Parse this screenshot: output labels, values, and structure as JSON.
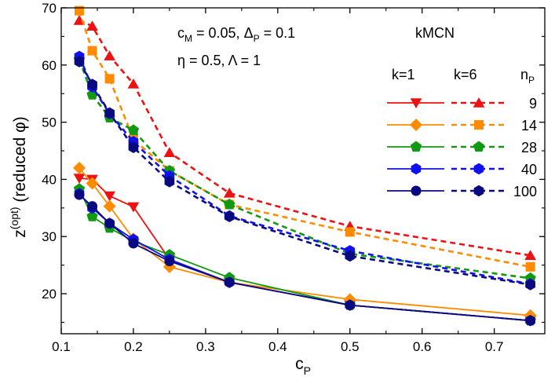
{
  "chart_data": {
    "type": "line",
    "xlabel": "c",
    "xlabel_sub": "P",
    "ylabel_main": "z",
    "ylabel_sup": "(opt)",
    "ylabel_tail": " (reduced φ)",
    "xlim": [
      0.1,
      0.77
    ],
    "ylim": [
      13,
      70
    ],
    "xticks": [
      0.1,
      0.2,
      0.3,
      0.4,
      0.5,
      0.6,
      0.7
    ],
    "xtick_labels": [
      "0.1",
      "0.2",
      "0.3",
      "0.4",
      "0.5",
      "0.6",
      "0.7"
    ],
    "yticks": [
      20,
      30,
      40,
      50,
      60,
      70
    ],
    "ytick_labels": [
      "20",
      "30",
      "40",
      "50",
      "60",
      "70"
    ],
    "x": [
      0.125,
      0.143,
      0.167,
      0.2,
      0.25,
      0.333,
      0.5,
      0.75
    ],
    "annotations": {
      "param_line1": "c_M = 0.05, Δ_P = 0.1",
      "param_line2": "η = 0.5, Λ = 1",
      "model": "kMCN"
    },
    "legend": {
      "placement": "right",
      "col_k1": "k=1",
      "col_k6": "k=6",
      "col_np": "n_P"
    },
    "series": [
      {
        "np": "9",
        "k": "1",
        "color": "#ee1111",
        "marker": "tri-down",
        "style": "solid",
        "values": [
          40.2,
          40.0,
          37.1,
          35.2,
          26.0,
          22.0,
          18.0,
          15.3
        ]
      },
      {
        "np": "9",
        "k": "6",
        "color": "#ee1111",
        "marker": "tri-up",
        "style": "dashed",
        "values": [
          67.8,
          66.8,
          61.6,
          56.7,
          44.7,
          37.6,
          31.8,
          26.7
        ]
      },
      {
        "np": "14",
        "k": "1",
        "color": "#ff8c00",
        "marker": "diamond",
        "style": "solid",
        "values": [
          42.0,
          39.3,
          35.3,
          29.6,
          24.7,
          22.0,
          19.0,
          16.2
        ]
      },
      {
        "np": "14",
        "k": "6",
        "color": "#ff8c00",
        "marker": "square",
        "style": "dashed",
        "values": [
          69.5,
          62.5,
          57.6,
          47.0,
          41.5,
          35.6,
          30.8,
          24.7
        ]
      },
      {
        "np": "28",
        "k": "1",
        "color": "#119911",
        "marker": "pentagon",
        "style": "solid",
        "values": [
          38.3,
          33.5,
          31.5,
          29.2,
          26.8,
          22.8,
          18.0,
          15.3
        ]
      },
      {
        "np": "28",
        "k": "6",
        "color": "#119911",
        "marker": "pentagon",
        "style": "dashed",
        "values": [
          61.0,
          54.8,
          50.8,
          48.6,
          41.5,
          35.6,
          27.0,
          22.7
        ]
      },
      {
        "np": "40",
        "k": "1",
        "color": "#1111ee",
        "marker": "hexagon",
        "style": "solid",
        "values": [
          37.5,
          35.0,
          32.3,
          29.5,
          26.0,
          22.0,
          18.0,
          15.3
        ]
      },
      {
        "np": "40",
        "k": "6",
        "color": "#1111ee",
        "marker": "hexagon",
        "style": "dashed",
        "values": [
          61.5,
          56.2,
          51.5,
          46.6,
          40.6,
          33.6,
          27.5,
          21.7
        ]
      },
      {
        "np": "100",
        "k": "1",
        "color": "#0a0a80",
        "marker": "circle",
        "style": "solid",
        "values": [
          37.3,
          35.3,
          32.3,
          28.8,
          25.7,
          22.0,
          18.0,
          15.3
        ]
      },
      {
        "np": "100",
        "k": "6",
        "color": "#0a0a80",
        "marker": "hexagon",
        "style": "dashed",
        "values": [
          60.6,
          56.6,
          51.6,
          45.6,
          39.6,
          33.5,
          26.6,
          21.6
        ]
      }
    ]
  }
}
